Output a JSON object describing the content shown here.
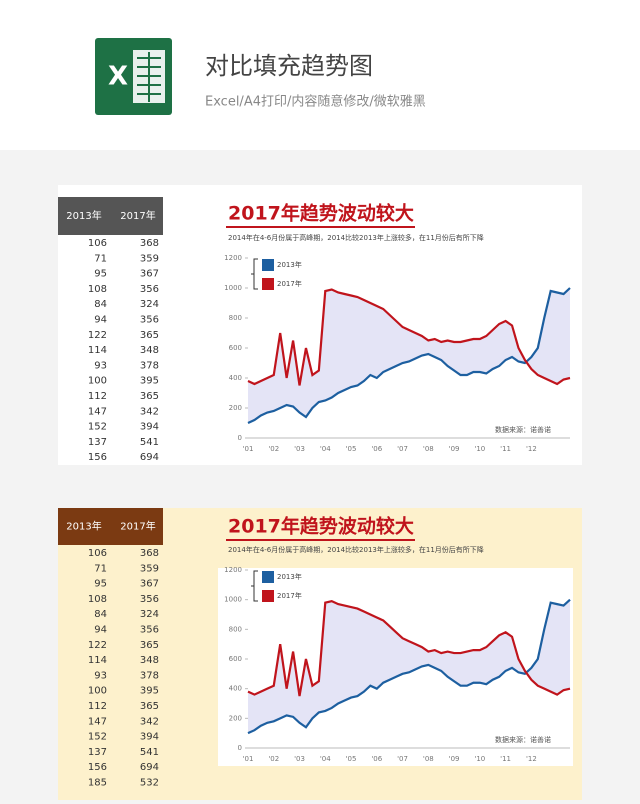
{
  "header": {
    "icon_letter": "X",
    "title": "对比填充趋势图",
    "subtitle": "Excel/A4打印/内容随意修改/微软雅黑"
  },
  "panels": [
    {
      "table": {
        "columns": [
          "2013年",
          "2017年"
        ],
        "rows": [
          [
            106,
            368
          ],
          [
            71,
            359
          ],
          [
            95,
            367
          ],
          [
            108,
            356
          ],
          [
            84,
            324
          ],
          [
            94,
            356
          ],
          [
            122,
            365
          ],
          [
            114,
            348
          ],
          [
            93,
            378
          ],
          [
            100,
            395
          ],
          [
            112,
            365
          ],
          [
            147,
            342
          ],
          [
            152,
            394
          ],
          [
            137,
            541
          ],
          [
            156,
            694
          ]
        ]
      },
      "chart_data": {
        "type": "line",
        "title": "2017年趋势波动较大",
        "subtitle": "2014年在4-6月份属于高峰期，2014比较2013年上涨较多，在11月份后有所下降",
        "source": "数据来源：诺善诺",
        "categories": [
          "'01",
          null,
          null,
          null,
          "'02",
          null,
          null,
          null,
          "'03",
          null,
          null,
          null,
          "'04",
          null,
          null,
          null,
          "'05",
          null,
          null,
          null,
          "'06",
          null,
          null,
          null,
          "'07",
          null,
          null,
          null,
          "'08",
          null,
          null,
          null,
          "'09",
          null,
          null,
          null,
          "'10",
          null,
          null,
          null,
          "'11",
          null,
          null,
          null,
          "'12",
          null,
          null,
          null,
          null,
          null,
          null
        ],
        "series": [
          {
            "name": "2013年",
            "color": "#1d5fa0",
            "values": [
              100,
              120,
              150,
              170,
              180,
              200,
              220,
              210,
              170,
              140,
              200,
              240,
              250,
              270,
              300,
              320,
              340,
              350,
              380,
              420,
              400,
              440,
              460,
              480,
              500,
              510,
              530,
              550,
              560,
              540,
              520,
              480,
              450,
              420,
              420,
              440,
              440,
              430,
              460,
              480,
              520,
              540,
              510,
              500,
              540,
              600,
              800,
              980,
              970,
              960,
              1000
            ]
          },
          {
            "name": "2017年",
            "color": "#c0141c",
            "values": [
              380,
              360,
              380,
              400,
              420,
              700,
              400,
              650,
              350,
              600,
              420,
              450,
              980,
              990,
              970,
              960,
              950,
              940,
              920,
              900,
              880,
              860,
              820,
              780,
              740,
              720,
              700,
              680,
              650,
              660,
              640,
              650,
              640,
              640,
              650,
              660,
              660,
              680,
              720,
              760,
              780,
              750,
              600,
              520,
              460,
              420,
              400,
              380,
              360,
              390,
              400
            ]
          }
        ],
        "fill_color": "#e4e4f6",
        "ylim": [
          0,
          1200
        ],
        "yticks": [
          0,
          200,
          400,
          600,
          800,
          1000,
          1200
        ]
      }
    },
    {
      "table": {
        "columns": [
          "2013年",
          "2017年"
        ],
        "rows": [
          [
            106,
            368
          ],
          [
            71,
            359
          ],
          [
            95,
            367
          ],
          [
            108,
            356
          ],
          [
            84,
            324
          ],
          [
            94,
            356
          ],
          [
            122,
            365
          ],
          [
            114,
            348
          ],
          [
            93,
            378
          ],
          [
            100,
            395
          ],
          [
            112,
            365
          ],
          [
            147,
            342
          ],
          [
            152,
            394
          ],
          [
            137,
            541
          ],
          [
            156,
            694
          ],
          [
            185,
            532
          ]
        ]
      },
      "chart_data": {
        "type": "line",
        "title": "2017年趋势波动较大",
        "subtitle": "2014年在4-6月份属于高峰期，2014比较2013年上涨较多，在11月份后有所下降",
        "source": "数据来源：诺善诺",
        "categories": [
          "'01",
          null,
          null,
          null,
          "'02",
          null,
          null,
          null,
          "'03",
          null,
          null,
          null,
          "'04",
          null,
          null,
          null,
          "'05",
          null,
          null,
          null,
          "'06",
          null,
          null,
          null,
          "'07",
          null,
          null,
          null,
          "'08",
          null,
          null,
          null,
          "'09",
          null,
          null,
          null,
          "'10",
          null,
          null,
          null,
          "'11",
          null,
          null,
          null,
          "'12",
          null,
          null,
          null,
          null,
          null,
          null
        ],
        "series": [
          {
            "name": "2013年",
            "color": "#1d5fa0",
            "values": [
              100,
              120,
              150,
              170,
              180,
              200,
              220,
              210,
              170,
              140,
              200,
              240,
              250,
              270,
              300,
              320,
              340,
              350,
              380,
              420,
              400,
              440,
              460,
              480,
              500,
              510,
              530,
              550,
              560,
              540,
              520,
              480,
              450,
              420,
              420,
              440,
              440,
              430,
              460,
              480,
              520,
              540,
              510,
              500,
              540,
              600,
              800,
              980,
              970,
              960,
              1000
            ]
          },
          {
            "name": "2017年",
            "color": "#c0141c",
            "values": [
              380,
              360,
              380,
              400,
              420,
              700,
              400,
              650,
              350,
              600,
              420,
              450,
              980,
              990,
              970,
              960,
              950,
              940,
              920,
              900,
              880,
              860,
              820,
              780,
              740,
              720,
              700,
              680,
              650,
              660,
              640,
              650,
              640,
              640,
              650,
              660,
              660,
              680,
              720,
              760,
              780,
              750,
              600,
              520,
              460,
              420,
              400,
              380,
              360,
              390,
              400
            ]
          }
        ],
        "fill_color": "#e4e4f6",
        "ylim": [
          0,
          1200
        ],
        "yticks": [
          0,
          200,
          400,
          600,
          800,
          1000,
          1200
        ]
      }
    }
  ]
}
